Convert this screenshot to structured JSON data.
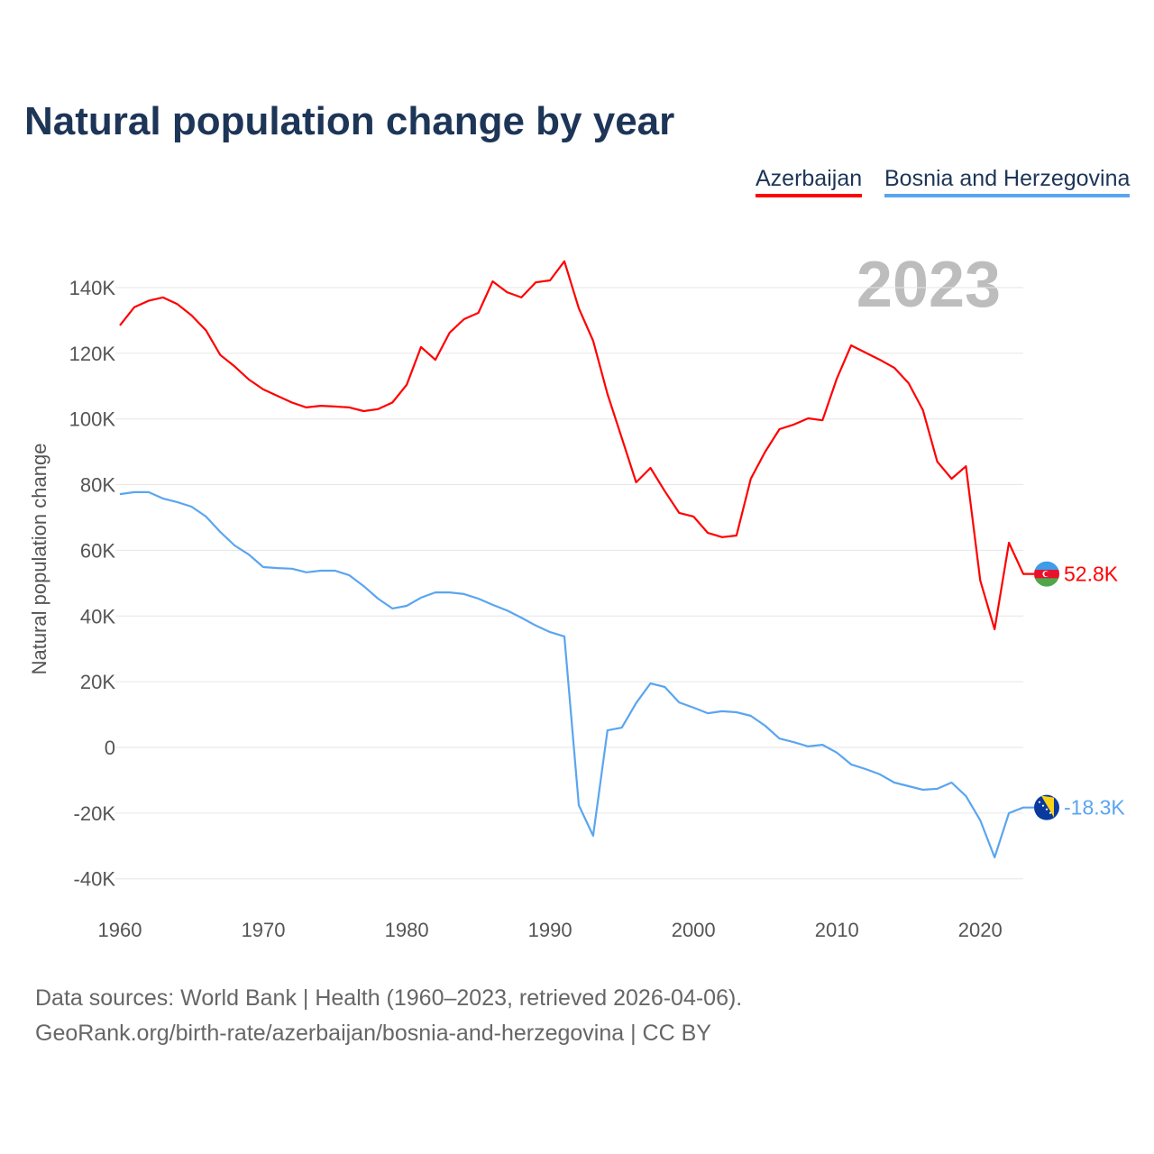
{
  "title": "Natural population change by year",
  "year_watermark": "2023",
  "source_line1": "Data sources: World Bank | Health (1960–2023, retrieved 2026-04-06).",
  "source_line2": "GeoRank.org/birth-rate/azerbaijan/bosnia-and-herzegovina | CC BY",
  "chart_data": {
    "type": "line",
    "title": "Natural population change by year",
    "xlabel": "",
    "ylabel": "Natural population change",
    "xlim": [
      1960,
      2023
    ],
    "ylim": [
      -40000,
      140000
    ],
    "xticks": [
      "1960",
      "1970",
      "1980",
      "1990",
      "2000",
      "2010",
      "2020"
    ],
    "yticks": [
      {
        "v": -40000,
        "l": "-40K"
      },
      {
        "v": -20000,
        "l": "-20K"
      },
      {
        "v": 0,
        "l": "0"
      },
      {
        "v": 20000,
        "l": "20K"
      },
      {
        "v": 40000,
        "l": "40K"
      },
      {
        "v": 60000,
        "l": "60K"
      },
      {
        "v": 80000,
        "l": "80K"
      },
      {
        "v": 100000,
        "l": "100K"
      },
      {
        "v": 120000,
        "l": "120K"
      },
      {
        "v": 140000,
        "l": "140K"
      }
    ],
    "grid": true,
    "legend_position": "top-right",
    "x_start": 1960,
    "series": [
      {
        "name": "Azerbaijan",
        "color": "#ff0000",
        "flag": "azerbaijan-flag",
        "end_label": "52.8K",
        "values": [
          128500,
          134000,
          136000,
          137000,
          135000,
          131500,
          127000,
          119500,
          116000,
          112000,
          109000,
          107000,
          105000,
          103500,
          104000,
          103800,
          103500,
          102400,
          103000,
          105000,
          110400,
          121900,
          118000,
          126300,
          130400,
          132300,
          141900,
          138600,
          137000,
          141600,
          142200,
          148000,
          133700,
          123800,
          107600,
          94200,
          80700,
          85100,
          78000,
          71400,
          70300,
          65300,
          64000,
          64500,
          81800,
          90000,
          96900,
          98300,
          100200,
          99600,
          112300,
          122400,
          120200,
          118000,
          115600,
          110900,
          102700,
          87000,
          81800,
          85600,
          50800,
          36000,
          62300,
          52800
        ]
      },
      {
        "name": "Bosnia and Herzegovina",
        "color": "#5aa5f0",
        "flag": "bosnia-flag",
        "end_label": "-18.3K",
        "values": [
          77100,
          77700,
          77700,
          75800,
          74700,
          73300,
          70300,
          65600,
          61500,
          58700,
          54900,
          54600,
          54400,
          53300,
          53800,
          53800,
          52400,
          49100,
          45300,
          42300,
          43100,
          45600,
          47200,
          47200,
          46700,
          45300,
          43400,
          41700,
          39500,
          37100,
          35100,
          33800,
          -17600,
          -26900,
          5200,
          6000,
          13500,
          19500,
          18400,
          13700,
          12100,
          10400,
          11000,
          10700,
          9600,
          6600,
          2700,
          1600,
          300,
          800,
          -1600,
          -5200,
          -6600,
          -8200,
          -10700,
          -11800,
          -12900,
          -12600,
          -10700,
          -14800,
          -22200,
          -33500,
          -20000,
          -18300
        ]
      }
    ]
  }
}
